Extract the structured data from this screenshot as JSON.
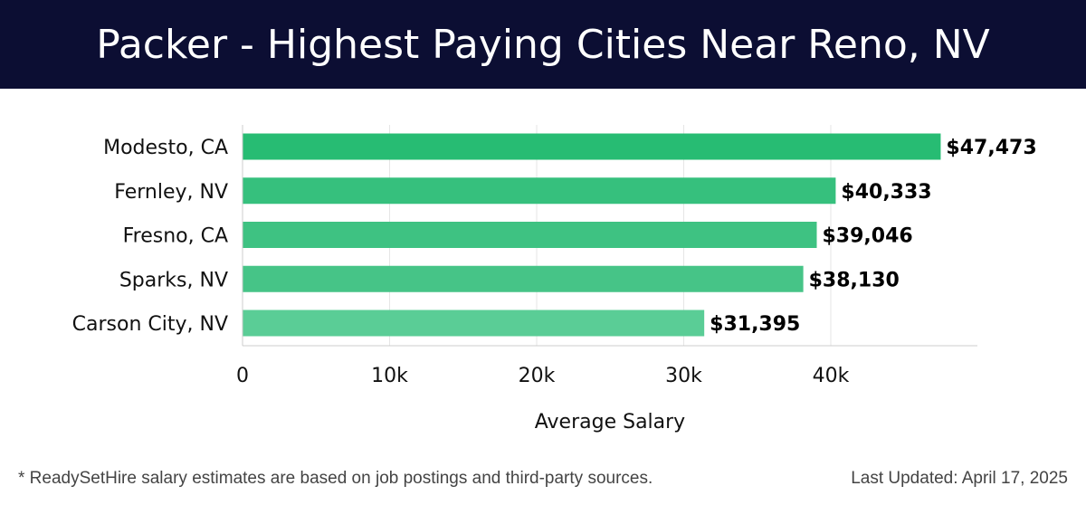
{
  "header": {
    "title": "Packer - Highest Paying Cities Near Reno, NV"
  },
  "chart_data": {
    "type": "bar",
    "orientation": "horizontal",
    "categories": [
      "Modesto, CA",
      "Fernley, NV",
      "Fresno, CA",
      "Sparks, NV",
      "Carson City, NV"
    ],
    "values": [
      47473,
      40333,
      39046,
      38130,
      31395
    ],
    "value_labels": [
      "$47,473",
      "$40,333",
      "$39,046",
      "$38,130",
      "$31,395"
    ],
    "xlabel": "Average Salary",
    "ylabel": "",
    "xticks": [
      0,
      10000,
      20000,
      30000,
      40000
    ],
    "xtick_labels": [
      "0",
      "10k",
      "20k",
      "30k",
      "40k"
    ],
    "xlim": [
      0,
      50000
    ],
    "grid": "vertical",
    "bar_colors": [
      "#27bc73",
      "#36c07d",
      "#3ec282",
      "#46c487",
      "#5acd96"
    ]
  },
  "footer": {
    "note": "* ReadySetHire salary estimates are based on job postings and third-party sources.",
    "updated": "Last Updated: April 17, 2025"
  }
}
